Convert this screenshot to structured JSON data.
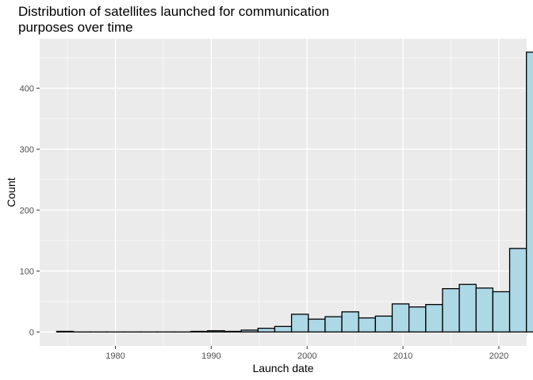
{
  "chart_data": {
    "type": "bar",
    "title_lines": [
      "Distribution of satellites launched for communication",
      "purposes over time"
    ],
    "xlabel": "Launch date",
    "ylabel": "Count",
    "x_ticks": [
      1980,
      1990,
      2000,
      2010,
      2020
    ],
    "y_ticks": [
      0,
      100,
      200,
      300,
      400
    ],
    "xlim": [
      1972.1,
      2022.9
    ],
    "ylim": [
      -23,
      481
    ],
    "bin_width": 1.75,
    "grid": true,
    "legend": "none",
    "bins": [
      {
        "start": 1973.875,
        "count": 1
      },
      {
        "start": 1975.625,
        "count": 0
      },
      {
        "start": 1977.375,
        "count": 0
      },
      {
        "start": 1979.125,
        "count": 0
      },
      {
        "start": 1980.875,
        "count": 0
      },
      {
        "start": 1982.625,
        "count": 0
      },
      {
        "start": 1984.375,
        "count": 0
      },
      {
        "start": 1986.125,
        "count": 0
      },
      {
        "start": 1987.875,
        "count": 1
      },
      {
        "start": 1989.625,
        "count": 2
      },
      {
        "start": 1991.375,
        "count": 1
      },
      {
        "start": 1993.125,
        "count": 3
      },
      {
        "start": 1994.875,
        "count": 6
      },
      {
        "start": 1996.625,
        "count": 9
      },
      {
        "start": 1998.375,
        "count": 29
      },
      {
        "start": 2000.125,
        "count": 21
      },
      {
        "start": 2001.875,
        "count": 25
      },
      {
        "start": 2003.625,
        "count": 33
      },
      {
        "start": 2005.375,
        "count": 23
      },
      {
        "start": 2007.125,
        "count": 26
      },
      {
        "start": 2008.875,
        "count": 46
      },
      {
        "start": 2010.625,
        "count": 41
      },
      {
        "start": 2012.375,
        "count": 45
      },
      {
        "start": 2014.125,
        "count": 71
      },
      {
        "start": 2015.875,
        "count": 78
      },
      {
        "start": 2017.625,
        "count": 72
      },
      {
        "start": 2019.375,
        "count": 66
      },
      {
        "start": 2021.125,
        "count": 137
      },
      {
        "start": 2022.875,
        "count": 459
      }
    ],
    "colors": {
      "panel_background": "#ebebeb",
      "grid_major": "#ffffff",
      "bar_fill": "#add8e6",
      "bar_outline": "#000000",
      "tick_label": "#4d4d4d"
    }
  }
}
